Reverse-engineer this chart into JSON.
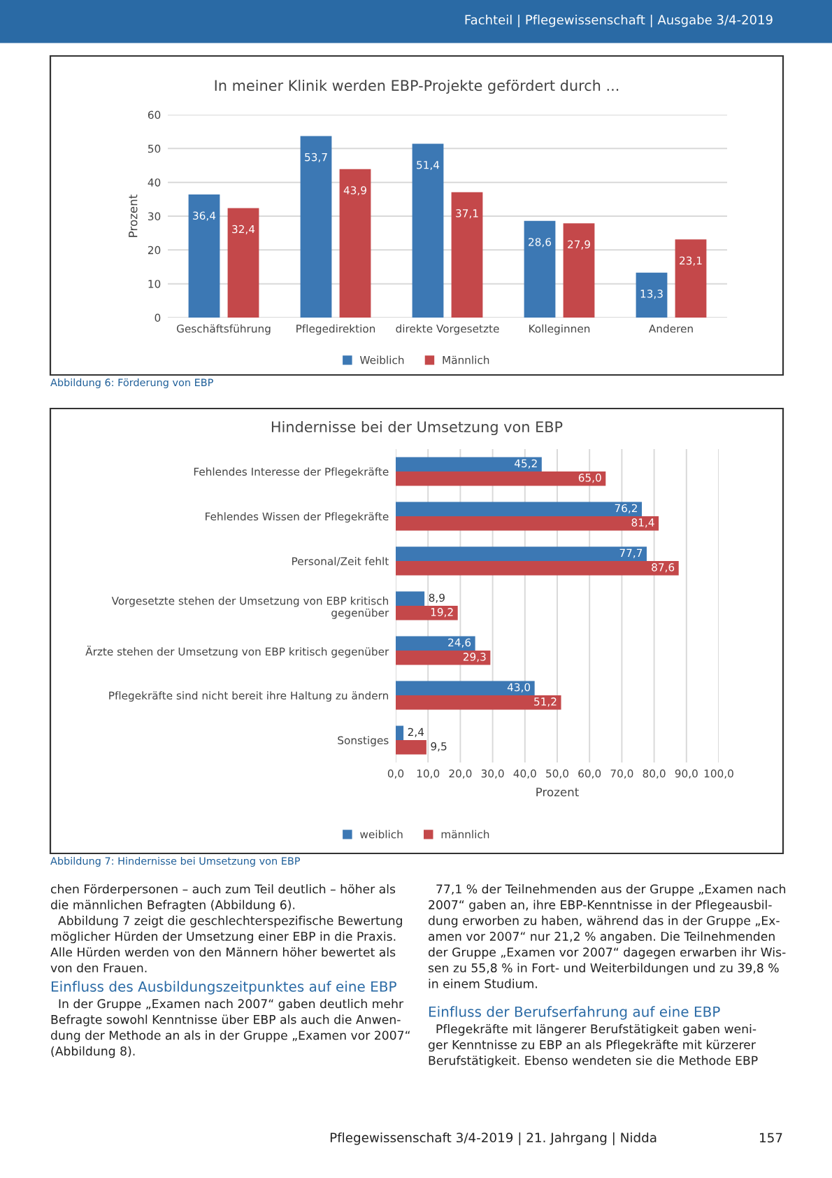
{
  "chart_data": [
    {
      "type": "bar",
      "title": "In meiner Klinik werden EBP-Projekte gefördert durch ...",
      "categories": [
        "Geschäftsführung",
        "Pflegedirektion",
        "direkte Vorgesetzte",
        "Kolleginnen",
        "Anderen"
      ],
      "series": [
        {
          "name": "Weiblich",
          "color": "#3c78b4",
          "values": [
            36.4,
            53.7,
            51.4,
            28.6,
            13.3
          ],
          "value_labels": [
            "36,4",
            "53,7",
            "51,4",
            "28,6",
            "13,3"
          ]
        },
        {
          "name": "Männlich",
          "color": "#c4484a",
          "values": [
            32.4,
            43.9,
            37.1,
            27.9,
            23.1
          ],
          "value_labels": [
            "32,4",
            "43,9",
            "37,1",
            "27,9",
            "23,1"
          ]
        }
      ],
      "ylim": [
        0,
        60
      ],
      "yticks": [
        0,
        10,
        20,
        30,
        40,
        50,
        60
      ],
      "ylabel": "Prozent",
      "grid": "y",
      "legend": "bottom",
      "annotations": [
        "Fachteil | Pflegewissenschaft | Ausgabe 3/4-2019",
        "Abbildung 6: Förderung von EBP"
      ]
    },
    {
      "type": "bar",
      "orientation": "horizontal",
      "title": "Hindernisse bei der Umsetzung von EBP",
      "categories": [
        "Fehlendes Interesse der Pflegekräfte",
        "Fehlendes Wissen der Pflegekräfte",
        "Personal/Zeit fehlt",
        "Vorgesetzte stehen der Umsetzung von EBP kritisch\ngegenüber",
        "Ärzte stehen der Umsetzung von EBP kritisch gegenüber",
        "Pflegekräfte sind nicht bereit ihre Haltung zu ändern",
        "Sonstiges"
      ],
      "series": [
        {
          "name": "weiblich",
          "color": "#3c78b4",
          "values": [
            45.2,
            76.2,
            77.7,
            8.9,
            24.6,
            43.0,
            2.4
          ],
          "value_labels": [
            "45,2",
            "76,2",
            "77,7",
            "8,9",
            "24,6",
            "43,0",
            "2,4"
          ]
        },
        {
          "name": "männlich",
          "color": "#c4484a",
          "values": [
            65.0,
            81.4,
            87.6,
            19.2,
            29.3,
            51.2,
            9.5
          ],
          "value_labels": [
            "65,0",
            "81,4",
            "87,6",
            "19,2",
            "29,3",
            "51,2",
            "9,5"
          ]
        }
      ],
      "xlim": [
        0,
        100
      ],
      "xticks": [
        {
          "value": 0,
          "label": "0,0"
        },
        {
          "value": 10,
          "label": "10,0"
        },
        {
          "value": 20,
          "label": "20,0"
        },
        {
          "value": 30,
          "label": "30,0"
        },
        {
          "value": 40,
          "label": "40,0"
        },
        {
          "value": 50,
          "label": "50,0"
        },
        {
          "value": 60,
          "label": "60,0"
        },
        {
          "value": 70,
          "label": "70,0"
        },
        {
          "value": 80,
          "label": "80,0"
        },
        {
          "value": 90,
          "label": "90,0"
        },
        {
          "value": 100,
          "label": "100,0"
        }
      ],
      "xlabel": "Prozent",
      "grid": "x",
      "legend": "bottom",
      "annotations": [
        "Abbildung 7: Hindernisse bei Umsetzung von EBP",
        "chen Förderpersonen – auch zum Teil deutlich – höher als\ndie männlichen Befragten (Abbildung 6).\n  Abbildung 7 zeigt die geschlechterspezifische Bewertung\nmöglicher Hürden der Umsetzung einer EBP in die Praxis.\nAlle Hürden werden von den Männern höher bewertet als\nvon den Frauen.",
        "Einfluss des Ausbildungszeitpunktes auf eine EBP",
        "  In der Gruppe „Examen nach 2007“ gaben deutlich mehr\nBefragte sowohl Kenntnisse über EBP als auch die Anwen-\ndung der Methode an als in der Gruppe „Examen vor 2007“\n(Abbildung 8).",
        "  77,1 % der Teilnehmenden aus der Gruppe „Examen nach\n2007“ gaben an, ihre EBP-Kenntnisse in der Pflegeausbil-\ndung erworben zu haben, während das in der Gruppe „Ex-\namen vor 2007“ nur 21,2 % angaben. Die Teilnehmenden\nder Gruppe „Examen vor 2007“ dagegen erwarben ihr Wis-\nsen zu 55,8 % in Fort- und Weiterbildungen und zu 39,8 %\nin einem Studium.",
        "Einfluss der Berufserfahrung auf eine EBP",
        "  Pflegekräfte mit längerer Berufstätigkeit gaben weni-\nger Kenntnisse zu EBP an als Pflegekräfte mit kürzerer\nBerufstätigkeit. Ebenso wendeten sie die Methode EBP",
        "Pflegewissenschaft 3/4-2019 | 21. Jahrgang | Nidda",
        "157"
      ]
    }
  ]
}
